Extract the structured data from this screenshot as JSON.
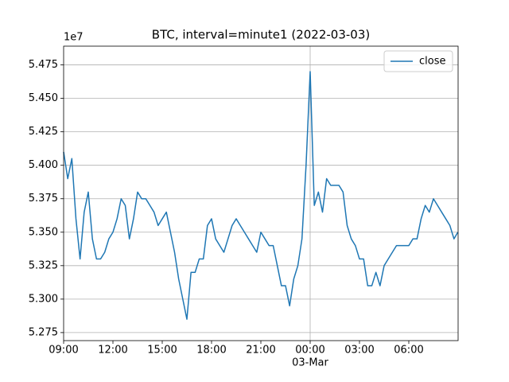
{
  "chart_data": {
    "type": "line",
    "title": "BTC, interval=minute1 (2022-03-03)",
    "offset_label": "1e7",
    "x": [
      "09:00",
      "09:15",
      "09:30",
      "09:45",
      "10:00",
      "10:15",
      "10:30",
      "10:45",
      "11:00",
      "11:15",
      "11:30",
      "11:45",
      "12:00",
      "12:15",
      "12:30",
      "12:45",
      "13:00",
      "13:15",
      "13:30",
      "13:45",
      "14:00",
      "14:15",
      "14:30",
      "14:45",
      "15:00",
      "15:15",
      "15:30",
      "15:45",
      "16:00",
      "16:15",
      "16:30",
      "16:45",
      "17:00",
      "17:15",
      "17:30",
      "17:45",
      "18:00",
      "18:15",
      "18:30",
      "18:45",
      "19:00",
      "19:15",
      "19:30",
      "19:45",
      "20:00",
      "20:15",
      "20:30",
      "20:45",
      "21:00",
      "21:15",
      "21:30",
      "21:45",
      "22:00",
      "22:15",
      "22:30",
      "22:45",
      "23:00",
      "23:15",
      "23:30",
      "23:45",
      "00:00",
      "00:15",
      "00:30",
      "00:45",
      "01:00",
      "01:15",
      "01:30",
      "01:45",
      "02:00",
      "02:15",
      "02:30",
      "02:45",
      "03:00",
      "03:15",
      "03:30",
      "03:45",
      "04:00",
      "04:15",
      "04:30",
      "04:45",
      "05:00",
      "05:15",
      "05:30",
      "05:45",
      "06:00",
      "06:15",
      "06:30",
      "06:45",
      "07:00",
      "07:15",
      "07:30",
      "07:45",
      "08:00",
      "08:15",
      "08:30",
      "08:45",
      "08:59"
    ],
    "series": [
      {
        "name": "close",
        "color": "#1f77b4",
        "values": [
          5.41,
          5.39,
          5.405,
          5.36,
          5.33,
          5.365,
          5.38,
          5.345,
          5.33,
          5.33,
          5.335,
          5.345,
          5.35,
          5.36,
          5.375,
          5.37,
          5.345,
          5.36,
          5.38,
          5.375,
          5.375,
          5.37,
          5.365,
          5.355,
          5.36,
          5.365,
          5.35,
          5.335,
          5.315,
          5.3,
          5.285,
          5.32,
          5.32,
          5.33,
          5.33,
          5.355,
          5.36,
          5.345,
          5.34,
          5.335,
          5.345,
          5.355,
          5.36,
          5.355,
          5.35,
          5.345,
          5.34,
          5.335,
          5.35,
          5.345,
          5.34,
          5.34,
          5.325,
          5.31,
          5.31,
          5.295,
          5.315,
          5.325,
          5.345,
          5.4,
          5.47,
          5.37,
          5.38,
          5.365,
          5.39,
          5.385,
          5.385,
          5.385,
          5.38,
          5.355,
          5.345,
          5.34,
          5.33,
          5.33,
          5.31,
          5.31,
          5.32,
          5.31,
          5.325,
          5.33,
          5.335,
          5.34,
          5.34,
          5.34,
          5.34,
          5.345,
          5.345,
          5.36,
          5.37,
          5.365,
          5.375,
          5.37,
          5.365,
          5.36,
          5.355,
          5.345,
          5.35
        ]
      }
    ],
    "xlim": [
      "09:00",
      "08:59"
    ],
    "xticks": [
      "09:00",
      "12:00",
      "15:00",
      "18:00",
      "21:00",
      "00:00",
      "03:00",
      "06:00"
    ],
    "date_label": {
      "value": "00:00",
      "label": "03-Mar"
    },
    "ylim": [
      5.269,
      5.489
    ],
    "yticks": [
      5.275,
      {
        "value": 5.3,
        "label": "5.300"
      },
      5.325,
      {
        "value": 5.35,
        "label": "5.350"
      },
      5.375,
      {
        "value": 5.4,
        "label": "5.400"
      },
      5.425,
      {
        "value": 5.45,
        "label": "5.450"
      },
      5.475
    ],
    "grid": true,
    "legend": "upper right"
  }
}
